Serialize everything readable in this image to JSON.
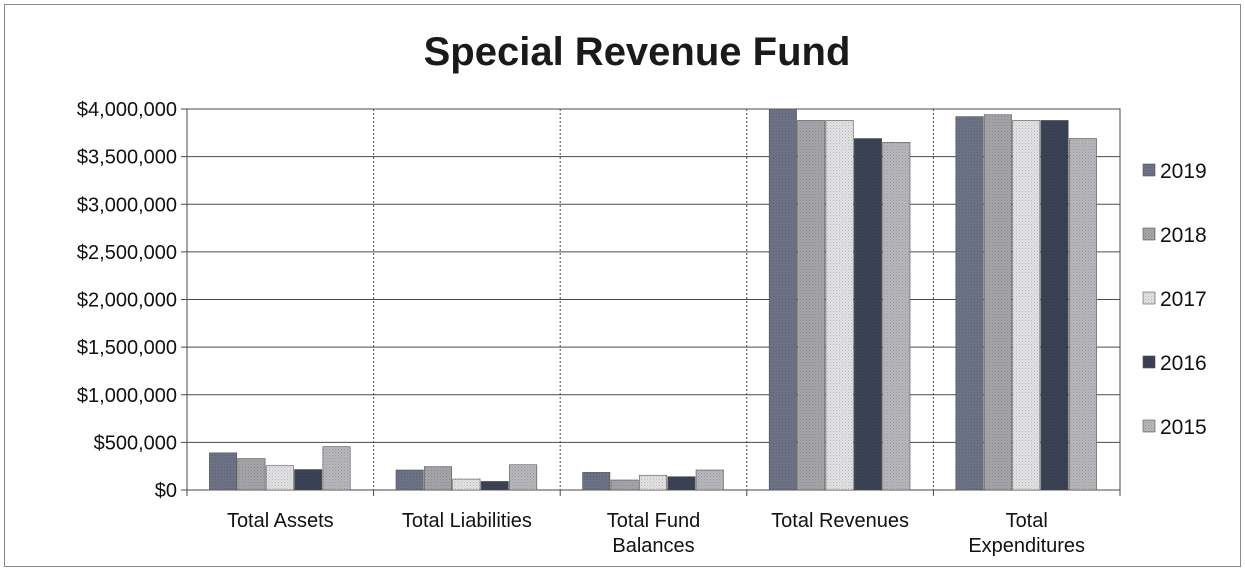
{
  "chart_data": {
    "type": "bar",
    "title": "Special Revenue Fund",
    "xlabel": "",
    "ylabel": "",
    "ylim": [
      0,
      4000000
    ],
    "yticks": [
      0,
      500000,
      1000000,
      1500000,
      2000000,
      2500000,
      3000000,
      3500000,
      4000000
    ],
    "ytick_labels": [
      "$0",
      "$500,000",
      "$1,000,000",
      "$1,500,000",
      "$2,000,000",
      "$2,500,000",
      "$3,000,000",
      "$3,500,000",
      "$4,000,000"
    ],
    "grid": true,
    "legend_position": "right",
    "categories": [
      [
        "Total Assets"
      ],
      [
        "Total Liabilities"
      ],
      [
        "Total Fund",
        "Balances"
      ],
      [
        "Total Revenues"
      ],
      [
        "Total",
        "Expenditures"
      ]
    ],
    "series": [
      {
        "name": "2019",
        "color": "#6e7488",
        "values": [
          390000,
          210000,
          185000,
          4000000,
          3920000
        ]
      },
      {
        "name": "2018",
        "color": "#a6a6aa",
        "values": [
          330000,
          245000,
          105000,
          3880000,
          3940000
        ]
      },
      {
        "name": "2017",
        "color": "#e2e2e4",
        "values": [
          255000,
          115000,
          155000,
          3880000,
          3880000
        ]
      },
      {
        "name": "2016",
        "color": "#3c4356",
        "values": [
          215000,
          90000,
          140000,
          3690000,
          3880000
        ]
      },
      {
        "name": "2015",
        "color": "#b8b8bc",
        "values": [
          455000,
          265000,
          210000,
          3650000,
          3690000
        ]
      }
    ]
  }
}
